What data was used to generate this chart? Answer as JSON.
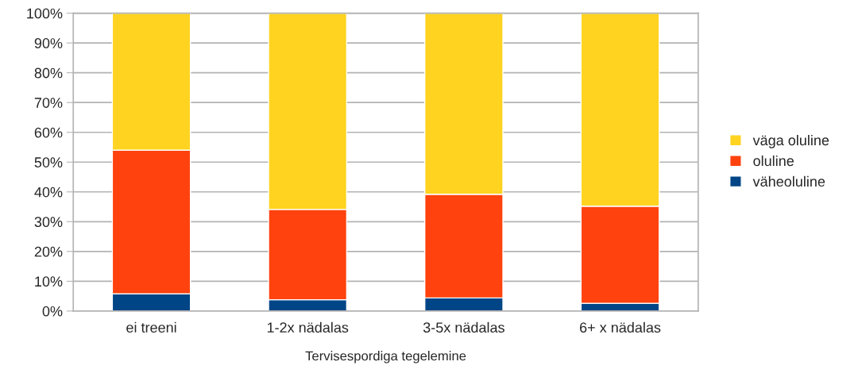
{
  "chart_data": {
    "type": "bar",
    "stacked": true,
    "xlabel": "Tervisespordiga tegelemine",
    "categories": [
      "ei treeni",
      "1-2x nädalas",
      "3-5x nädalas",
      "6+ x nädalas"
    ],
    "series": [
      {
        "name": "väheoluline",
        "color": "#004586",
        "values": [
          5.8,
          3.8,
          4.4,
          2.6
        ]
      },
      {
        "name": "oluline",
        "color": "#ff420e",
        "values": [
          48.2,
          30.3,
          34.8,
          32.6
        ]
      },
      {
        "name": "väga oluline",
        "color": "#ffd320",
        "values": [
          46,
          65.9,
          60.8,
          64.8
        ]
      }
    ],
    "ylim": [
      0,
      100
    ],
    "yticks": [
      {
        "value": 0,
        "label": "0%"
      },
      {
        "value": 10,
        "label": "10%"
      },
      {
        "value": 20,
        "label": "20%"
      },
      {
        "value": 30,
        "label": "30%"
      },
      {
        "value": 40,
        "label": "40%"
      },
      {
        "value": 50,
        "label": "50%"
      },
      {
        "value": 60,
        "label": "60%"
      },
      {
        "value": 70,
        "label": "70%"
      },
      {
        "value": 80,
        "label": "80%"
      },
      {
        "value": 90,
        "label": "90%"
      },
      {
        "value": 100,
        "label": "100%"
      }
    ],
    "grid": "y",
    "legend": "right"
  }
}
